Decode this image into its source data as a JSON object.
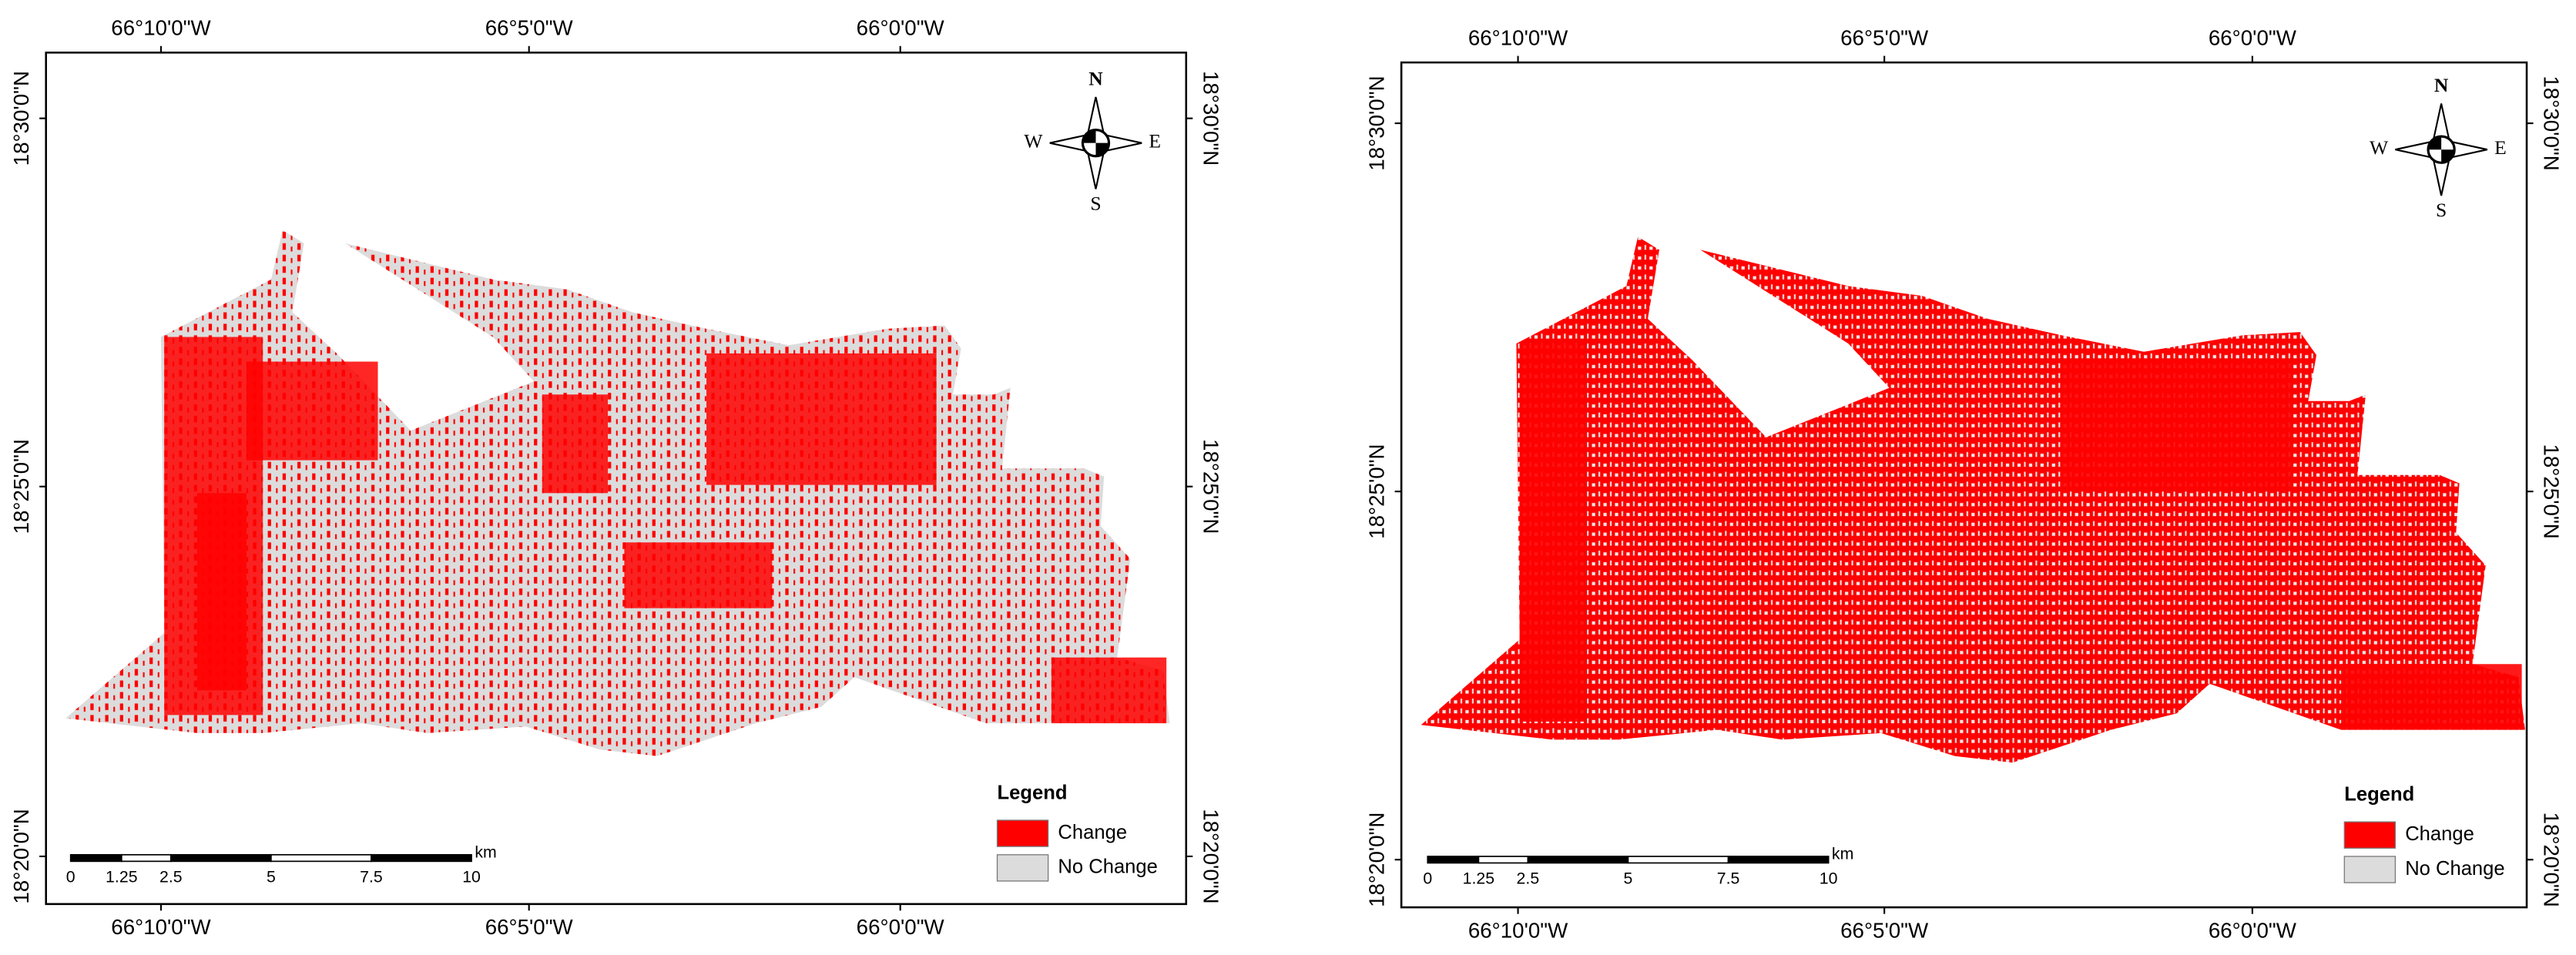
{
  "maps": [
    {
      "lon_labels": [
        "66°10'0\"W",
        "66°5'0\"W",
        "66°0'0\"W"
      ],
      "lat_labels": [
        "18°30'0\"N",
        "18°25'0\"N",
        "18°20'0\"N"
      ],
      "compass": {
        "n": "N",
        "e": "E",
        "s": "S",
        "w": "W"
      },
      "legend": {
        "title": "Legend",
        "items": [
          "Change",
          "No Change"
        ]
      },
      "scale_bar": {
        "labels": [
          "0",
          "1.25",
          "2.5",
          "5",
          "7.5",
          "10"
        ],
        "unit": "km"
      }
    },
    {
      "lon_labels": [
        "66°10'0\"W",
        "66°5'0\"W",
        "66°0'0\"W"
      ],
      "lat_labels": [
        "18°30'0\"N",
        "18°25'0\"N",
        "18°20'0\"N"
      ],
      "compass": {
        "n": "N",
        "e": "E",
        "s": "S",
        "w": "W"
      },
      "legend": {
        "title": "Legend",
        "items": [
          "Change",
          "No Change"
        ]
      },
      "scale_bar": {
        "labels": [
          "0",
          "1.25",
          "2.5",
          "5",
          "7.5",
          "10"
        ],
        "unit": "km"
      }
    }
  ]
}
